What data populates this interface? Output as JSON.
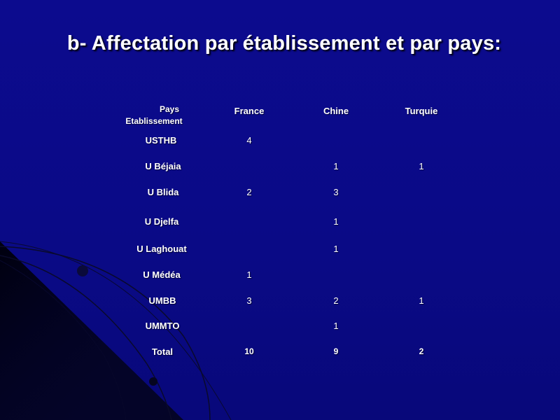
{
  "slide": {
    "title": "b- Affectation par établissement et par pays:"
  },
  "table": {
    "corner": {
      "top": "Pays",
      "bottom": "Etablissement"
    },
    "columns": [
      "France",
      "Chine",
      "Turquie"
    ],
    "rows": [
      {
        "label": "USTHB",
        "values": [
          "4",
          "",
          ""
        ]
      },
      {
        "label": "U Béjaia",
        "values": [
          "",
          "1",
          "1"
        ]
      },
      {
        "label": "U Blida",
        "values": [
          "2",
          "3",
          ""
        ]
      },
      {
        "label": "U Djelfa",
        "values": [
          "",
          "1",
          ""
        ]
      },
      {
        "label": "U Laghouat",
        "values": [
          "",
          "1",
          ""
        ]
      },
      {
        "label": "U Médéa",
        "values": [
          "1",
          "",
          ""
        ]
      },
      {
        "label": "UMBB",
        "values": [
          "3",
          "2",
          "1"
        ]
      },
      {
        "label": "UMMTO",
        "values": [
          "",
          "1",
          ""
        ]
      },
      {
        "label": "Total",
        "values": [
          "10",
          "9",
          "2"
        ]
      }
    ]
  }
}
